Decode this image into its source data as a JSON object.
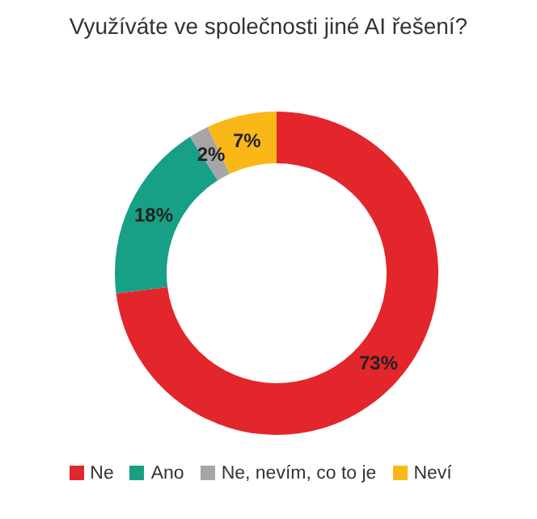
{
  "chart_data": {
    "type": "donut",
    "title": "Využíváte ve společnosti jiné AI řešení?",
    "categories": [
      "Ne",
      "Ano",
      "Ne, nevím, co to je",
      "Neví"
    ],
    "values": [
      73,
      18,
      2,
      7
    ],
    "colors": [
      "#e3262b",
      "#17a085",
      "#a6a6a6",
      "#f9b817"
    ],
    "value_labels": [
      "73%",
      "18%",
      "2%",
      "7%"
    ],
    "legend": "bottom"
  }
}
